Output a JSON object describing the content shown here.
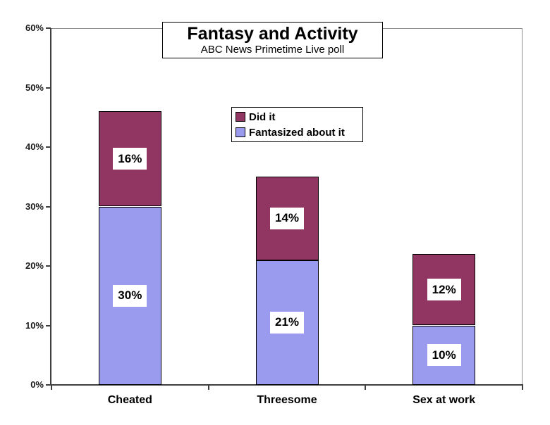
{
  "chart_data": {
    "type": "bar",
    "stacked": true,
    "title": "Fantasy and Activity",
    "subtitle": "ABC News Primetime Live poll",
    "categories": [
      "Cheated",
      "Threesome",
      "Sex at work"
    ],
    "series": [
      {
        "name": "Fantasized about it",
        "color": "#9A9AEF",
        "values": [
          30,
          21,
          10
        ]
      },
      {
        "name": "Did it",
        "color": "#913563",
        "values": [
          16,
          14,
          12
        ]
      }
    ],
    "data_labels": {
      "Fantasized about it": [
        "30%",
        "21%",
        "10%"
      ],
      "Did it": [
        "16%",
        "14%",
        "12%"
      ]
    },
    "totals": [
      46,
      35,
      22
    ],
    "y_axis": {
      "min": 0,
      "max": 60,
      "step": 10,
      "tick_labels": [
        "0%",
        "10%",
        "20%",
        "30%",
        "40%",
        "50%",
        "60%"
      ]
    },
    "legend": {
      "position": "inside-top-center",
      "entries": [
        {
          "label": "Did it",
          "color": "#913563"
        },
        {
          "label": "Fantasized about it",
          "color": "#9A9AEF"
        }
      ]
    },
    "grid": false,
    "background": "#FFFFFF",
    "bar_border_color": "#000000",
    "axis_color": "#3F3F3F",
    "frame_color": "#8F8F8F"
  }
}
